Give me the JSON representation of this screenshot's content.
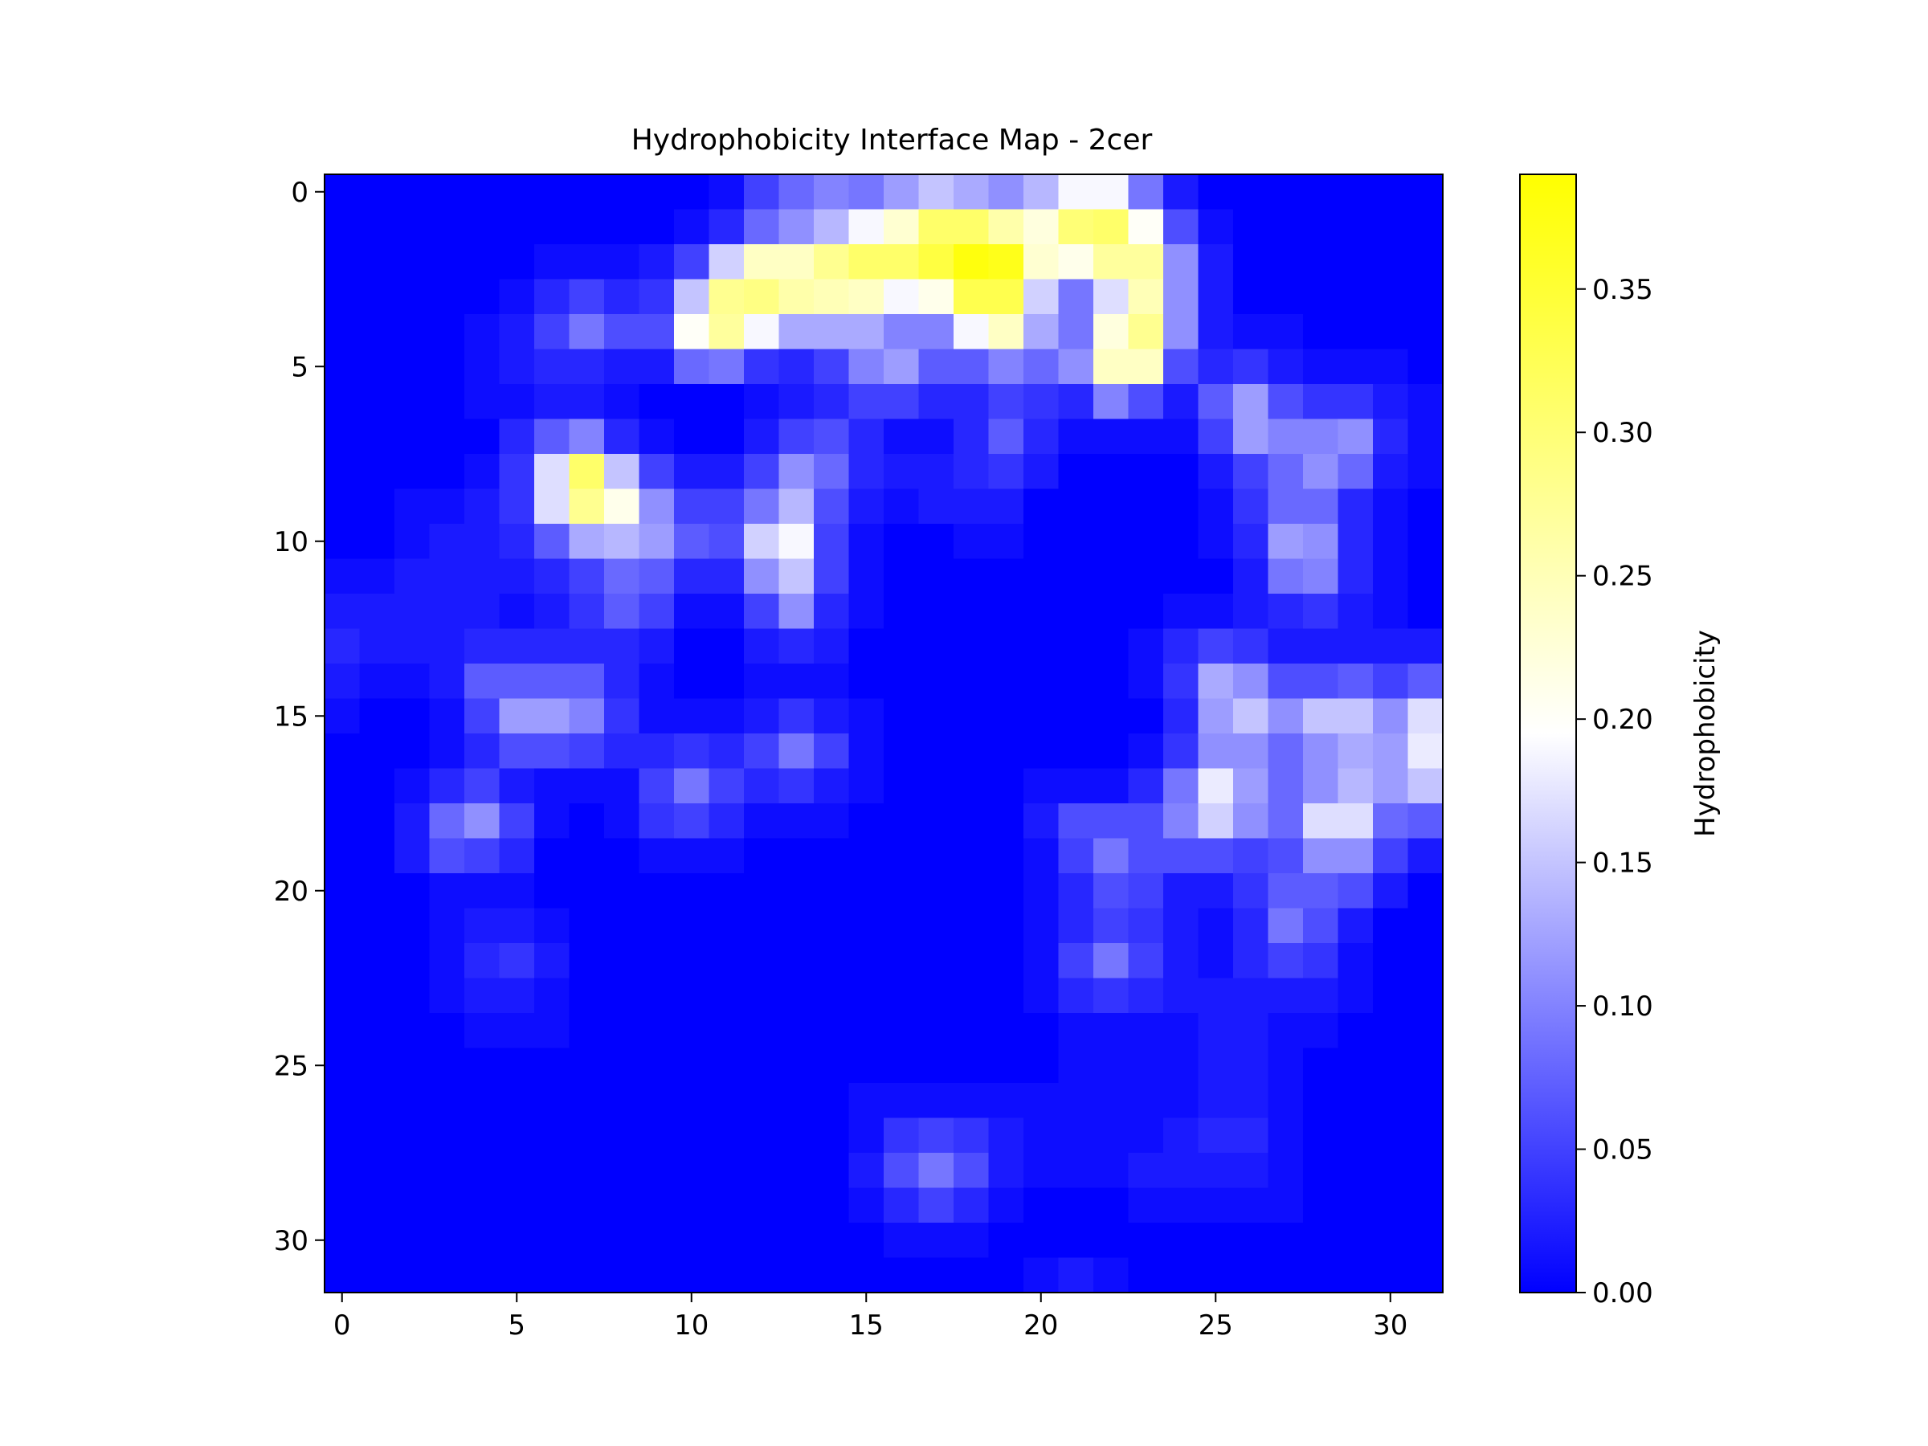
{
  "chart_data": {
    "type": "heatmap",
    "title": "Hydrophobicity Interface Map - 2cer",
    "xlabel": "",
    "ylabel": "",
    "colorbar_label": "Hydrophobicity",
    "colormap": [
      "#0000ff",
      "#ffffff",
      "#ffff00"
    ],
    "value_range": [
      0,
      0.39
    ],
    "rows": 32,
    "cols": 32,
    "x_ticks": [
      0,
      5,
      10,
      15,
      20,
      25,
      30
    ],
    "y_ticks": [
      0,
      5,
      10,
      15,
      20,
      25,
      30
    ],
    "colorbar_ticks": [
      "0.00",
      "0.05",
      "0.10",
      "0.15",
      "0.20",
      "0.25",
      "0.30",
      "0.35"
    ],
    "values": [
      [
        0,
        0,
        0,
        0,
        0,
        0,
        0,
        0,
        0,
        0,
        0,
        0.01,
        0.05,
        0.08,
        0.1,
        0.09,
        0.12,
        0.15,
        0.13,
        0.11,
        0.14,
        0.19,
        0.19,
        0.09,
        0.02,
        0,
        0,
        0,
        0,
        0,
        0,
        0
      ],
      [
        0,
        0,
        0,
        0,
        0,
        0,
        0,
        0,
        0,
        0,
        0.01,
        0.03,
        0.08,
        0.11,
        0.14,
        0.19,
        0.23,
        0.31,
        0.31,
        0.26,
        0.22,
        0.3,
        0.31,
        0.2,
        0.06,
        0.01,
        0,
        0,
        0,
        0,
        0,
        0
      ],
      [
        0,
        0,
        0,
        0,
        0,
        0,
        0.01,
        0.01,
        0.01,
        0.02,
        0.05,
        0.16,
        0.24,
        0.24,
        0.28,
        0.31,
        0.31,
        0.34,
        0.38,
        0.37,
        0.23,
        0.21,
        0.27,
        0.27,
        0.11,
        0.02,
        0,
        0,
        0,
        0,
        0,
        0
      ],
      [
        0,
        0,
        0,
        0,
        0,
        0.01,
        0.03,
        0.05,
        0.03,
        0.04,
        0.15,
        0.28,
        0.29,
        0.26,
        0.25,
        0.24,
        0.19,
        0.21,
        0.33,
        0.33,
        0.16,
        0.09,
        0.17,
        0.25,
        0.11,
        0.02,
        0,
        0,
        0,
        0,
        0,
        0
      ],
      [
        0,
        0,
        0,
        0,
        0.01,
        0.02,
        0.05,
        0.09,
        0.06,
        0.06,
        0.2,
        0.27,
        0.19,
        0.13,
        0.13,
        0.13,
        0.1,
        0.1,
        0.19,
        0.24,
        0.13,
        0.09,
        0.22,
        0.28,
        0.11,
        0.02,
        0.01,
        0.01,
        0,
        0,
        0,
        0
      ],
      [
        0,
        0,
        0,
        0,
        0.01,
        0.02,
        0.03,
        0.03,
        0.02,
        0.02,
        0.08,
        0.09,
        0.04,
        0.03,
        0.05,
        0.1,
        0.12,
        0.07,
        0.07,
        0.1,
        0.08,
        0.11,
        0.24,
        0.24,
        0.06,
        0.03,
        0.04,
        0.02,
        0.01,
        0.01,
        0.01,
        0
      ],
      [
        0,
        0,
        0,
        0,
        0.01,
        0.01,
        0.02,
        0.02,
        0.01,
        0,
        0,
        0,
        0.01,
        0.02,
        0.03,
        0.05,
        0.05,
        0.03,
        0.03,
        0.05,
        0.04,
        0.03,
        0.1,
        0.06,
        0.02,
        0.07,
        0.12,
        0.06,
        0.04,
        0.04,
        0.02,
        0.01
      ],
      [
        0,
        0,
        0,
        0,
        0,
        0.03,
        0.07,
        0.1,
        0.03,
        0.01,
        0,
        0,
        0.02,
        0.05,
        0.06,
        0.03,
        0.01,
        0.01,
        0.03,
        0.07,
        0.03,
        0.01,
        0.01,
        0.01,
        0.01,
        0.05,
        0.12,
        0.1,
        0.1,
        0.11,
        0.03,
        0.01
      ],
      [
        0,
        0,
        0,
        0,
        0.01,
        0.04,
        0.17,
        0.31,
        0.15,
        0.05,
        0.02,
        0.02,
        0.05,
        0.11,
        0.08,
        0.03,
        0.02,
        0.02,
        0.03,
        0.04,
        0.02,
        0,
        0,
        0,
        0,
        0.02,
        0.05,
        0.08,
        0.11,
        0.08,
        0.02,
        0.01
      ],
      [
        0,
        0,
        0.01,
        0.01,
        0.02,
        0.04,
        0.17,
        0.28,
        0.21,
        0.11,
        0.05,
        0.05,
        0.09,
        0.14,
        0.06,
        0.02,
        0.01,
        0.02,
        0.02,
        0.02,
        0,
        0,
        0,
        0,
        0,
        0.01,
        0.04,
        0.08,
        0.08,
        0.03,
        0.01,
        0
      ],
      [
        0,
        0,
        0.01,
        0.02,
        0.02,
        0.03,
        0.07,
        0.13,
        0.14,
        0.12,
        0.07,
        0.06,
        0.16,
        0.19,
        0.05,
        0.01,
        0,
        0,
        0.01,
        0.01,
        0,
        0,
        0,
        0,
        0,
        0.01,
        0.03,
        0.12,
        0.11,
        0.03,
        0.01,
        0
      ],
      [
        0.01,
        0.01,
        0.02,
        0.02,
        0.02,
        0.02,
        0.03,
        0.05,
        0.08,
        0.07,
        0.03,
        0.03,
        0.11,
        0.15,
        0.05,
        0.01,
        0,
        0,
        0,
        0,
        0,
        0,
        0,
        0,
        0,
        0,
        0.02,
        0.09,
        0.1,
        0.03,
        0.01,
        0
      ],
      [
        0.02,
        0.02,
        0.02,
        0.02,
        0.02,
        0.01,
        0.02,
        0.04,
        0.07,
        0.05,
        0.01,
        0.01,
        0.05,
        0.11,
        0.03,
        0.01,
        0,
        0,
        0,
        0,
        0,
        0,
        0,
        0,
        0.01,
        0.01,
        0.02,
        0.03,
        0.04,
        0.02,
        0.01,
        0
      ],
      [
        0.03,
        0.02,
        0.02,
        0.02,
        0.03,
        0.03,
        0.03,
        0.03,
        0.03,
        0.02,
        0,
        0,
        0.02,
        0.03,
        0.02,
        0,
        0,
        0,
        0,
        0,
        0,
        0,
        0,
        0.01,
        0.03,
        0.05,
        0.04,
        0.02,
        0.02,
        0.02,
        0.02,
        0.02
      ],
      [
        0.02,
        0.01,
        0.01,
        0.02,
        0.07,
        0.07,
        0.07,
        0.07,
        0.03,
        0.01,
        0,
        0,
        0.01,
        0.01,
        0.01,
        0,
        0,
        0,
        0,
        0,
        0,
        0,
        0,
        0.01,
        0.04,
        0.13,
        0.11,
        0.06,
        0.06,
        0.07,
        0.05,
        0.07
      ],
      [
        0.01,
        0,
        0,
        0.01,
        0.05,
        0.12,
        0.12,
        0.1,
        0.04,
        0.01,
        0.01,
        0.01,
        0.02,
        0.04,
        0.02,
        0.01,
        0,
        0,
        0,
        0,
        0,
        0,
        0,
        0,
        0.03,
        0.12,
        0.15,
        0.11,
        0.15,
        0.15,
        0.11,
        0.17
      ],
      [
        0,
        0,
        0,
        0.01,
        0.03,
        0.06,
        0.06,
        0.05,
        0.03,
        0.03,
        0.04,
        0.03,
        0.05,
        0.09,
        0.05,
        0.01,
        0,
        0,
        0,
        0,
        0,
        0,
        0,
        0.01,
        0.04,
        0.11,
        0.11,
        0.08,
        0.11,
        0.13,
        0.12,
        0.18
      ],
      [
        0,
        0,
        0.01,
        0.03,
        0.05,
        0.02,
        0.01,
        0.01,
        0.01,
        0.05,
        0.09,
        0.05,
        0.03,
        0.04,
        0.02,
        0.01,
        0,
        0,
        0,
        0,
        0.01,
        0.01,
        0.01,
        0.03,
        0.09,
        0.18,
        0.12,
        0.08,
        0.11,
        0.14,
        0.12,
        0.15
      ],
      [
        0,
        0,
        0.02,
        0.08,
        0.11,
        0.05,
        0.01,
        0,
        0.01,
        0.04,
        0.05,
        0.03,
        0.01,
        0.01,
        0.01,
        0,
        0,
        0,
        0,
        0,
        0.02,
        0.06,
        0.06,
        0.06,
        0.1,
        0.16,
        0.11,
        0.08,
        0.17,
        0.17,
        0.08,
        0.07
      ],
      [
        0,
        0,
        0.02,
        0.06,
        0.05,
        0.03,
        0,
        0,
        0,
        0.01,
        0.01,
        0.01,
        0,
        0,
        0,
        0,
        0,
        0,
        0,
        0,
        0.01,
        0.05,
        0.09,
        0.06,
        0.06,
        0.06,
        0.05,
        0.06,
        0.11,
        0.11,
        0.05,
        0.02
      ],
      [
        0,
        0,
        0,
        0.01,
        0.01,
        0.01,
        0,
        0,
        0,
        0,
        0,
        0,
        0,
        0,
        0,
        0,
        0,
        0,
        0,
        0,
        0.01,
        0.03,
        0.06,
        0.05,
        0.02,
        0.02,
        0.04,
        0.07,
        0.07,
        0.06,
        0.02,
        0
      ],
      [
        0,
        0,
        0,
        0.01,
        0.02,
        0.02,
        0.01,
        0,
        0,
        0,
        0,
        0,
        0,
        0,
        0,
        0,
        0,
        0,
        0,
        0,
        0.01,
        0.03,
        0.05,
        0.04,
        0.02,
        0.01,
        0.03,
        0.09,
        0.06,
        0.02,
        0,
        0
      ],
      [
        0,
        0,
        0,
        0.01,
        0.03,
        0.04,
        0.02,
        0,
        0,
        0,
        0,
        0,
        0,
        0,
        0,
        0,
        0,
        0,
        0,
        0,
        0.01,
        0.05,
        0.09,
        0.05,
        0.02,
        0.01,
        0.03,
        0.05,
        0.04,
        0.01,
        0,
        0
      ],
      [
        0,
        0,
        0,
        0.01,
        0.02,
        0.02,
        0.01,
        0,
        0,
        0,
        0,
        0,
        0,
        0,
        0,
        0,
        0,
        0,
        0,
        0,
        0.01,
        0.03,
        0.04,
        0.03,
        0.02,
        0.02,
        0.02,
        0.02,
        0.02,
        0.01,
        0,
        0
      ],
      [
        0,
        0,
        0,
        0,
        0.01,
        0.01,
        0.01,
        0,
        0,
        0,
        0,
        0,
        0,
        0,
        0,
        0,
        0,
        0,
        0,
        0,
        0,
        0.01,
        0.01,
        0.01,
        0.01,
        0.02,
        0.02,
        0.01,
        0.01,
        0,
        0,
        0
      ],
      [
        0,
        0,
        0,
        0,
        0,
        0,
        0,
        0,
        0,
        0,
        0,
        0,
        0,
        0,
        0,
        0,
        0,
        0,
        0,
        0,
        0,
        0.01,
        0.01,
        0.01,
        0.01,
        0.02,
        0.02,
        0.01,
        0,
        0,
        0,
        0
      ],
      [
        0,
        0,
        0,
        0,
        0,
        0,
        0,
        0,
        0,
        0,
        0,
        0,
        0,
        0,
        0,
        0.01,
        0.01,
        0.01,
        0.01,
        0.01,
        0.01,
        0.01,
        0.01,
        0.01,
        0.01,
        0.02,
        0.02,
        0.01,
        0,
        0,
        0,
        0
      ],
      [
        0,
        0,
        0,
        0,
        0,
        0,
        0,
        0,
        0,
        0,
        0,
        0,
        0,
        0,
        0,
        0.01,
        0.04,
        0.05,
        0.04,
        0.02,
        0.01,
        0.01,
        0.01,
        0.01,
        0.02,
        0.03,
        0.03,
        0.01,
        0,
        0,
        0,
        0
      ],
      [
        0,
        0,
        0,
        0,
        0,
        0,
        0,
        0,
        0,
        0,
        0,
        0,
        0,
        0,
        0,
        0.02,
        0.06,
        0.09,
        0.06,
        0.02,
        0.01,
        0.01,
        0.01,
        0.02,
        0.02,
        0.02,
        0.02,
        0.01,
        0,
        0,
        0,
        0
      ],
      [
        0,
        0,
        0,
        0,
        0,
        0,
        0,
        0,
        0,
        0,
        0,
        0,
        0,
        0,
        0,
        0.01,
        0.03,
        0.05,
        0.03,
        0.01,
        0,
        0,
        0,
        0.01,
        0.01,
        0.01,
        0.01,
        0.01,
        0,
        0,
        0,
        0
      ],
      [
        0,
        0,
        0,
        0,
        0,
        0,
        0,
        0,
        0,
        0,
        0,
        0,
        0,
        0,
        0,
        0,
        0.01,
        0.01,
        0.01,
        0,
        0,
        0,
        0,
        0,
        0,
        0,
        0,
        0,
        0,
        0,
        0,
        0
      ],
      [
        0,
        0,
        0,
        0,
        0,
        0,
        0,
        0,
        0,
        0,
        0,
        0,
        0,
        0,
        0,
        0,
        0,
        0,
        0,
        0,
        0.01,
        0.02,
        0.01,
        0,
        0,
        0,
        0,
        0,
        0,
        0,
        0,
        0
      ]
    ]
  }
}
